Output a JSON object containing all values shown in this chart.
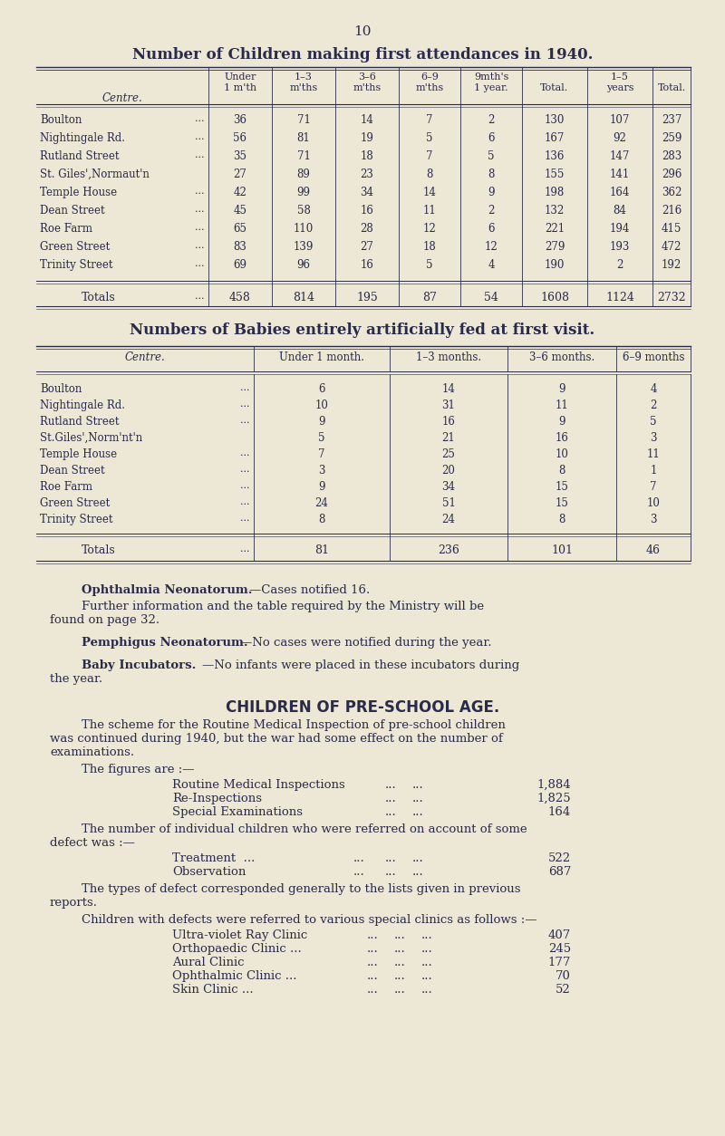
{
  "page_number": "10",
  "bg_color": "#ede8d5",
  "text_color": "#2a2a4a",
  "table1_title": "Number of Children making first attendances in 1940.",
  "table1_rows": [
    [
      "Boulton",
      "...",
      "36",
      "71",
      "14",
      "7",
      "2",
      "130",
      "107",
      "237"
    ],
    [
      "Nightingale Rd.",
      "...",
      "56",
      "81",
      "19",
      "5",
      "6",
      "167",
      "92",
      "259"
    ],
    [
      "Rutland Street",
      "...",
      "35",
      "71",
      "18",
      "7",
      "5",
      "136",
      "147",
      "283"
    ],
    [
      "St. Giles',Normaut'n",
      "",
      "27",
      "89",
      "23",
      "8",
      "8",
      "155",
      "141",
      "296"
    ],
    [
      "Temple House",
      "...",
      "42",
      "99",
      "34",
      "14",
      "9",
      "198",
      "164",
      "362"
    ],
    [
      "Dean Street",
      "...",
      "45",
      "58",
      "16",
      "11",
      "2",
      "132",
      "84",
      "216"
    ],
    [
      "Roe Farm",
      "...",
      "65",
      "110",
      "28",
      "12",
      "6",
      "221",
      "194",
      "415"
    ],
    [
      "Green Street",
      "...",
      "83",
      "139",
      "27",
      "18",
      "12",
      "279",
      "193",
      "472"
    ],
    [
      "Trinity Street",
      "...",
      "69",
      "96",
      "16",
      "5",
      "4",
      "190",
      "2",
      "192"
    ]
  ],
  "table1_totals": [
    "Totals",
    "...",
    "458",
    "814",
    "195",
    "87",
    "54",
    "1608",
    "1124",
    "2732"
  ],
  "table2_title": "Numbers of Babies entirely artificially fed at first visit.",
  "table2_rows": [
    [
      "Boulton",
      "...",
      "6",
      "14",
      "9",
      "4"
    ],
    [
      "Nightingale Rd.",
      "...",
      "10",
      "31",
      "11",
      "2"
    ],
    [
      "Rutland Street",
      "...",
      "9",
      "16",
      "9",
      "5"
    ],
    [
      "St.Giles',Norm'nt'n",
      "",
      "5",
      "21",
      "16",
      "3"
    ],
    [
      "Temple House",
      "...",
      "7",
      "25",
      "10",
      "11"
    ],
    [
      "Dean Street",
      "...",
      "3",
      "20",
      "8",
      "1"
    ],
    [
      "Roe Farm",
      "...",
      "9",
      "34",
      "15",
      "7"
    ],
    [
      "Green Street",
      "...",
      "24",
      "51",
      "15",
      "10"
    ],
    [
      "Trinity Street",
      "...",
      "8",
      "24",
      "8",
      "3"
    ]
  ],
  "table2_totals": [
    "Totals",
    "...",
    "81",
    "236",
    "101",
    "46"
  ]
}
